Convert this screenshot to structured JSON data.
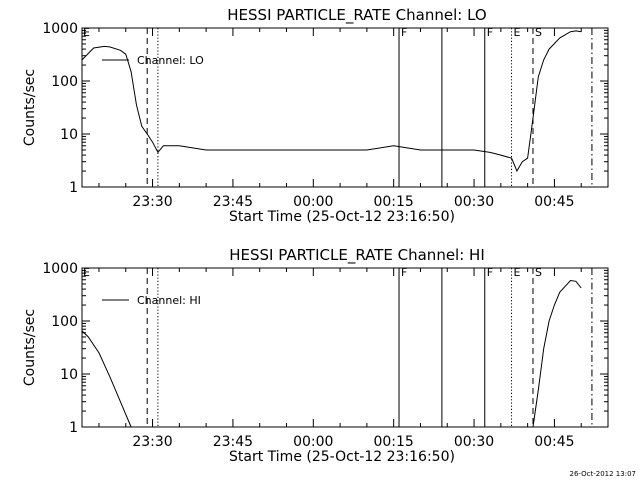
{
  "footer": {
    "timestamp": "26-Oct-2012 13:07"
  },
  "chart_data": [
    {
      "type": "line",
      "title": "HESSI PARTICLE_RATE Channel: LO",
      "xlabel": "Start Time (25-Oct-12 23:16:50)",
      "ylabel": "Counts/sec",
      "y_scale": "log",
      "ylim": [
        1,
        1000
      ],
      "xlim": [
        "23:16:50",
        "00:55:00"
      ],
      "x_ticks": [
        "23:30",
        "23:45",
        "00:00",
        "00:15",
        "00:30",
        "00:45"
      ],
      "y_ticks": [
        "1",
        "10",
        "100",
        "1000"
      ],
      "legend": {
        "position": "top-left",
        "entries": [
          "Channel: LO"
        ]
      },
      "series": [
        {
          "name": "Channel: LO",
          "x": [
            "23:16:50",
            "23:19",
            "23:21",
            "23:22",
            "23:24",
            "23:25",
            "23:26",
            "23:27",
            "23:28",
            "23:29",
            "23:30",
            "23:31",
            "23:32",
            "23:35",
            "23:40",
            "23:45",
            "23:50",
            "23:55",
            "00:00",
            "00:05",
            "00:10",
            "00:15",
            "00:20",
            "00:25",
            "00:30",
            "00:33",
            "00:35",
            "00:37",
            "00:38",
            "00:39",
            "00:40",
            "00:41",
            "00:42",
            "00:43",
            "00:44",
            "00:46",
            "00:48",
            "00:49",
            "00:50"
          ],
          "values": [
            250,
            420,
            450,
            440,
            380,
            320,
            150,
            35,
            14,
            10,
            7,
            4.5,
            6,
            6,
            5,
            5,
            5,
            5,
            5,
            5,
            5,
            6,
            5,
            5,
            5,
            4.5,
            4,
            3.5,
            2,
            3,
            3.5,
            20,
            120,
            250,
            400,
            650,
            850,
            880,
            850
          ]
        }
      ],
      "markers": [
        {
          "time": "23:29",
          "style": "dashed",
          "label": ""
        },
        {
          "time": "23:31",
          "style": "dotted",
          "label": ""
        },
        {
          "time": "00:16",
          "style": "solid",
          "label": "F"
        },
        {
          "time": "00:24",
          "style": "solid",
          "label": ""
        },
        {
          "time": "00:32",
          "style": "solid",
          "label": "F"
        },
        {
          "time": "00:37",
          "style": "dotted",
          "label": "E"
        },
        {
          "time": "00:41",
          "style": "dashed",
          "label": "S"
        },
        {
          "time": "00:52",
          "style": "dashdot",
          "label": ""
        }
      ],
      "corner_labels": [
        "E"
      ]
    },
    {
      "type": "line",
      "title": "HESSI PARTICLE_RATE Channel: HI",
      "xlabel": "Start Time (25-Oct-12 23:16:50)",
      "ylabel": "Counts/sec",
      "y_scale": "log",
      "ylim": [
        1,
        1000
      ],
      "xlim": [
        "23:16:50",
        "00:55:00"
      ],
      "x_ticks": [
        "23:30",
        "23:45",
        "00:00",
        "00:15",
        "00:30",
        "00:45"
      ],
      "y_ticks": [
        "1",
        "10",
        "100",
        "1000"
      ],
      "legend": {
        "position": "top-left",
        "entries": [
          "Channel: HI"
        ]
      },
      "series": [
        {
          "name": "Channel: HI",
          "x": [
            "23:16:50",
            "23:18",
            "23:20",
            "23:22",
            "23:24",
            "23:26"
          ],
          "values": [
            65,
            50,
            25,
            9,
            3,
            1
          ],
          "connect_from_axis_start": true
        },
        {
          "name": "Channel: HI",
          "x": [
            "00:41",
            "00:42",
            "00:43",
            "00:44",
            "00:45",
            "00:46",
            "00:48",
            "00:49",
            "00:50"
          ],
          "values": [
            1,
            5,
            30,
            100,
            200,
            350,
            580,
            560,
            420
          ]
        }
      ],
      "markers": [
        {
          "time": "23:29",
          "style": "dashed",
          "label": ""
        },
        {
          "time": "23:31",
          "style": "dotted",
          "label": ""
        },
        {
          "time": "00:16",
          "style": "solid",
          "label": "F"
        },
        {
          "time": "00:24",
          "style": "solid",
          "label": ""
        },
        {
          "time": "00:32",
          "style": "solid",
          "label": "F"
        },
        {
          "time": "00:37",
          "style": "dotted",
          "label": "E"
        },
        {
          "time": "00:41",
          "style": "dashed",
          "label": "S"
        },
        {
          "time": "00:52",
          "style": "dashdot",
          "label": ""
        }
      ],
      "corner_labels": [
        "E"
      ]
    }
  ]
}
